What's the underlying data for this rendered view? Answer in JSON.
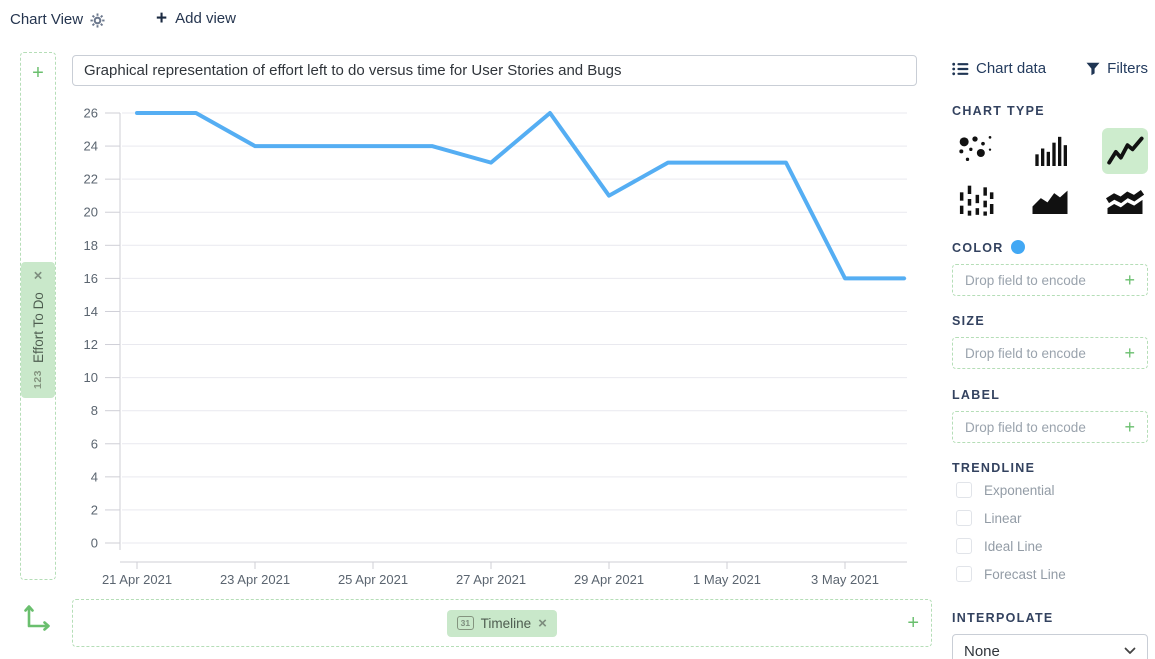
{
  "header": {
    "view_name": "Chart View",
    "add_view_label": "Add view"
  },
  "chart": {
    "title": "Graphical representation of effort left to do versus time for User Stories and Bugs",
    "y_field": {
      "icon": "123",
      "label": "Effort To Do",
      "remove_label": "×"
    },
    "x_field": {
      "icon": "31",
      "label": "Timeline",
      "remove_label": "×"
    }
  },
  "chart_data": {
    "type": "line",
    "title": "Graphical representation of effort left to do versus time for User Stories and Bugs",
    "x": [
      "21 Apr 2021",
      "22 Apr 2021",
      "23 Apr 2021",
      "24 Apr 2021",
      "25 Apr 2021",
      "26 Apr 2021",
      "27 Apr 2021",
      "28 Apr 2021",
      "29 Apr 2021",
      "30 Apr 2021",
      "1 May 2021",
      "2 May 2021",
      "3 May 2021",
      "4 May 2021"
    ],
    "values": [
      26,
      26,
      24,
      24,
      24,
      24,
      23,
      26,
      21,
      23,
      23,
      23,
      16,
      16
    ],
    "x_tick_labels": [
      "21 Apr 2021",
      "23 Apr 2021",
      "25 Apr 2021",
      "27 Apr 2021",
      "29 Apr 2021",
      "1 May 2021",
      "3 May 2021"
    ],
    "x_tick_every": 2,
    "ylabel": "Effort To Do",
    "xlabel": "Timeline",
    "ylim": [
      0,
      26
    ],
    "y_tick_step": 2,
    "grid": true,
    "legend": false,
    "line_color": "#55aef3",
    "grid_color": "#e9e9ef",
    "axis_color": "#cfcfd6",
    "tick_text_color": "#5b6570"
  },
  "sidebar": {
    "tabs": [
      {
        "label": "Chart data",
        "icon": "list-icon"
      },
      {
        "label": "Filters",
        "icon": "filter-icon"
      }
    ],
    "chart_type": {
      "label": "CHART TYPE",
      "options": [
        "scatter",
        "bar",
        "line",
        "candlestick",
        "area",
        "stacked-area"
      ],
      "selected": "line"
    },
    "color": {
      "label": "COLOR",
      "placeholder": "Drop field to encode",
      "dot_color": "#42a8f4"
    },
    "size": {
      "label": "SIZE",
      "placeholder": "Drop field to encode"
    },
    "label": {
      "label": "LABEL",
      "placeholder": "Drop field to encode"
    },
    "trendline": {
      "label": "TRENDLINE",
      "options": [
        "Exponential",
        "Linear",
        "Ideal Line",
        "Forecast Line"
      ],
      "checked": []
    },
    "interpolate": {
      "label": "INTERPOLATE",
      "value": "None"
    }
  }
}
